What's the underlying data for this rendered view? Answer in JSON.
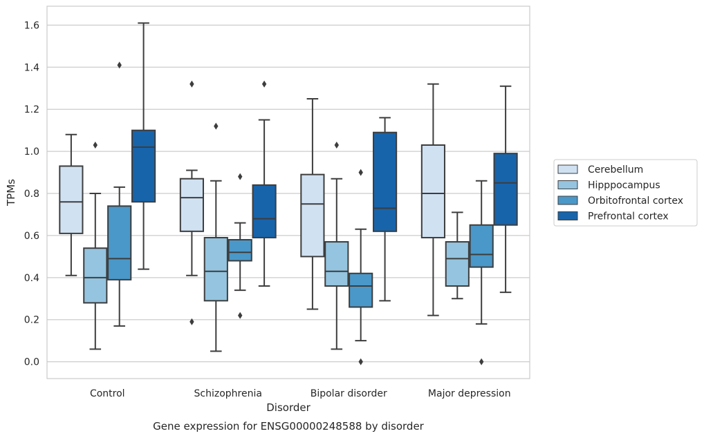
{
  "chart_data": {
    "type": "box",
    "title": "",
    "caption": "Gene expression for ENSG00000248588 by disorder",
    "xlabel": "Disorder",
    "ylabel": "TPMs",
    "ylim": [
      -0.08,
      1.69
    ],
    "yticks": [
      0.0,
      0.2,
      0.4,
      0.6,
      0.8,
      1.0,
      1.2,
      1.4,
      1.6
    ],
    "ytick_labels": [
      "0.0",
      "0.2",
      "0.4",
      "0.6",
      "0.8",
      "1.0",
      "1.2",
      "1.4",
      "1.6"
    ],
    "grid": "horizontal",
    "legend_position": "right",
    "categories": [
      "Control",
      "Schizophrenia",
      "Bipolar disorder",
      "Major depression"
    ],
    "series": [
      {
        "name": "Cerebellum",
        "color": "#d0e1f2",
        "boxes": [
          {
            "whisker_low": 0.41,
            "q1": 0.61,
            "median": 0.76,
            "q3": 0.93,
            "whisker_high": 1.08,
            "outliers": []
          },
          {
            "whisker_low": 0.41,
            "q1": 0.62,
            "median": 0.78,
            "q3": 0.87,
            "whisker_high": 0.91,
            "outliers": [
              1.32,
              0.19
            ]
          },
          {
            "whisker_low": 0.25,
            "q1": 0.5,
            "median": 0.75,
            "q3": 0.89,
            "whisker_high": 1.25,
            "outliers": []
          },
          {
            "whisker_low": 0.22,
            "q1": 0.59,
            "median": 0.8,
            "q3": 1.03,
            "whisker_high": 1.32,
            "outliers": []
          }
        ]
      },
      {
        "name": "Hipppocampus",
        "color": "#94c4df",
        "boxes": [
          {
            "whisker_low": 0.06,
            "q1": 0.28,
            "median": 0.4,
            "q3": 0.54,
            "whisker_high": 0.8,
            "outliers": [
              1.03
            ]
          },
          {
            "whisker_low": 0.05,
            "q1": 0.29,
            "median": 0.43,
            "q3": 0.59,
            "whisker_high": 0.86,
            "outliers": [
              1.12
            ]
          },
          {
            "whisker_low": 0.06,
            "q1": 0.36,
            "median": 0.43,
            "q3": 0.57,
            "whisker_high": 0.87,
            "outliers": [
              1.03
            ]
          },
          {
            "whisker_low": 0.3,
            "q1": 0.36,
            "median": 0.49,
            "q3": 0.57,
            "whisker_high": 0.71,
            "outliers": []
          }
        ]
      },
      {
        "name": "Orbitofrontal cortex",
        "color": "#4a98c9",
        "boxes": [
          {
            "whisker_low": 0.17,
            "q1": 0.39,
            "median": 0.49,
            "q3": 0.74,
            "whisker_high": 0.83,
            "outliers": [
              1.41
            ]
          },
          {
            "whisker_low": 0.34,
            "q1": 0.48,
            "median": 0.52,
            "q3": 0.58,
            "whisker_high": 0.66,
            "outliers": [
              0.88,
              0.22
            ]
          },
          {
            "whisker_low": 0.1,
            "q1": 0.26,
            "median": 0.36,
            "q3": 0.42,
            "whisker_high": 0.63,
            "outliers": [
              0.9,
              0.0
            ]
          },
          {
            "whisker_low": 0.18,
            "q1": 0.45,
            "median": 0.51,
            "q3": 0.65,
            "whisker_high": 0.86,
            "outliers": [
              0.0
            ]
          }
        ]
      },
      {
        "name": "Prefrontal cortex",
        "color": "#1764ab",
        "boxes": [
          {
            "whisker_low": 0.44,
            "q1": 0.76,
            "median": 1.02,
            "q3": 1.1,
            "whisker_high": 1.61,
            "outliers": []
          },
          {
            "whisker_low": 0.36,
            "q1": 0.59,
            "median": 0.68,
            "q3": 0.84,
            "whisker_high": 1.15,
            "outliers": [
              1.32
            ]
          },
          {
            "whisker_low": 0.29,
            "q1": 0.62,
            "median": 0.73,
            "q3": 1.09,
            "whisker_high": 1.16,
            "outliers": []
          },
          {
            "whisker_low": 0.33,
            "q1": 0.65,
            "median": 0.85,
            "q3": 0.99,
            "whisker_high": 1.31,
            "outliers": []
          }
        ]
      }
    ]
  }
}
